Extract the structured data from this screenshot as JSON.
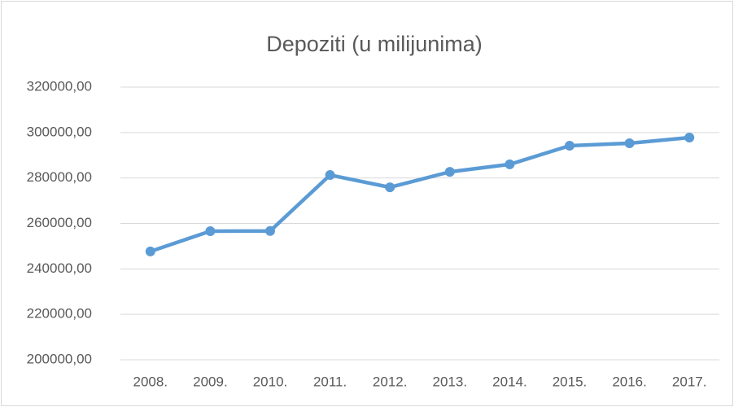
{
  "chart_data": {
    "type": "line",
    "title": "Depoziti (u milijunima)",
    "categories": [
      "2008.",
      "2009.",
      "2010.",
      "2011.",
      "2012.",
      "2013.",
      "2014.",
      "2015.",
      "2016.",
      "2017."
    ],
    "values": [
      247700,
      256600,
      256700,
      281300,
      275900,
      282700,
      286000,
      294200,
      295300,
      297800
    ],
    "color": "#5b9bd5",
    "ylim": [
      200000,
      320000
    ],
    "yticks": [
      {
        "value": 200000,
        "label": "200000,00"
      },
      {
        "value": 220000,
        "label": "220000,00"
      },
      {
        "value": 240000,
        "label": "240000,00"
      },
      {
        "value": 260000,
        "label": "260000,00"
      },
      {
        "value": 280000,
        "label": "280000,00"
      },
      {
        "value": 300000,
        "label": "300000,00"
      },
      {
        "value": 320000,
        "label": "320000,00"
      }
    ],
    "grid": true
  }
}
